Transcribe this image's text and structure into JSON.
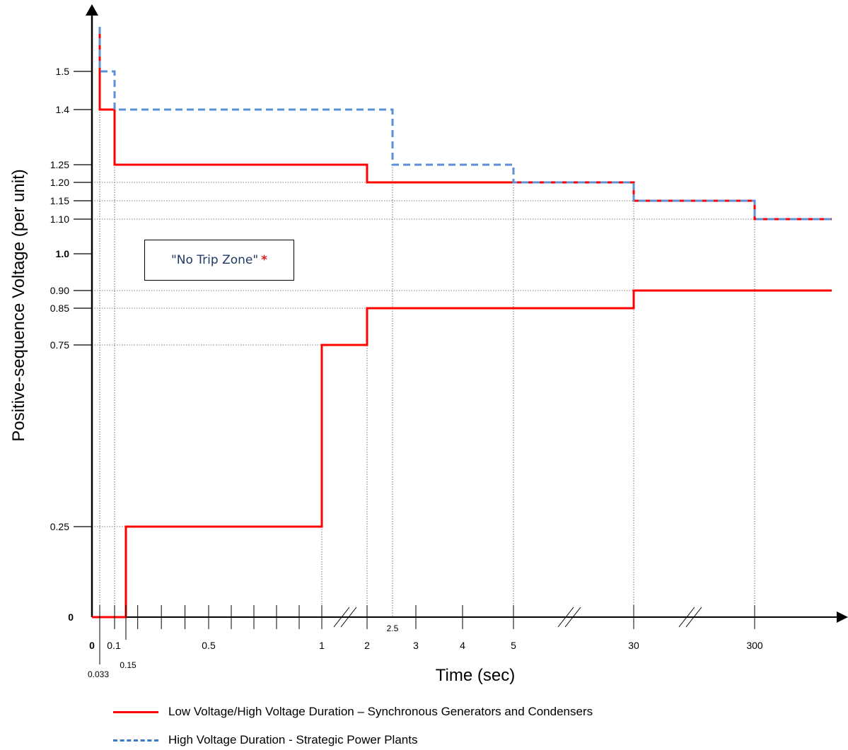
{
  "chart_data": {
    "type": "line",
    "xlabel": "Time (sec)",
    "ylabel": "Positive-sequence Voltage (per unit)",
    "x_scale": "piecewise (axis broken between 1 and 2, between 5 and 30, between 30 and 300)",
    "x_ticks": [
      {
        "label": "0",
        "value": 0,
        "bold": true
      },
      {
        "label": "0.033",
        "value": 0.033,
        "small": true
      },
      {
        "label": "0.1",
        "value": 0.1
      },
      {
        "label": "0.15",
        "value": 0.15,
        "small": true
      },
      {
        "label": "0.5",
        "value": 0.5
      },
      {
        "label": "1",
        "value": 1
      },
      {
        "label": "2",
        "value": 2
      },
      {
        "label": "2.5",
        "value": 2.5,
        "small": true
      },
      {
        "label": "3",
        "value": 3
      },
      {
        "label": "4",
        "value": 4
      },
      {
        "label": "5",
        "value": 5
      },
      {
        "label": "30",
        "value": 30
      },
      {
        "label": "300",
        "value": 300
      }
    ],
    "y_ticks": [
      {
        "label": "0",
        "value": 0,
        "bold": true
      },
      {
        "label": "0.25",
        "value": 0.25
      },
      {
        "label": "0.75",
        "value": 0.75
      },
      {
        "label": "0.85",
        "value": 0.85
      },
      {
        "label": "0.90",
        "value": 0.9
      },
      {
        "label": "1.0",
        "value": 1.0,
        "bold": true
      },
      {
        "label": "1.10",
        "value": 1.1
      },
      {
        "label": "1.15",
        "value": 1.15
      },
      {
        "label": "1.20",
        "value": 1.2
      },
      {
        "label": "1.25",
        "value": 1.25
      },
      {
        "label": "1.4",
        "value": 1.4
      },
      {
        "label": "1.5",
        "value": 1.5
      }
    ],
    "series": [
      {
        "name": "Low Voltage/High Voltage Duration – Synchronous Generators and Condensers",
        "role": "high-voltage-limit",
        "style": "solid",
        "color": "#ff0000",
        "points": [
          [
            0.033,
            1.62
          ],
          [
            0.033,
            1.4
          ],
          [
            0.1,
            1.4
          ],
          [
            0.1,
            1.25
          ],
          [
            2,
            1.25
          ],
          [
            2,
            1.2
          ],
          [
            30,
            1.2
          ],
          [
            30,
            1.15
          ],
          [
            300,
            1.15
          ],
          [
            300,
            1.1
          ],
          [
            400,
            1.1
          ]
        ]
      },
      {
        "name": "Low Voltage/High Voltage Duration – Synchronous Generators and Condensers",
        "role": "low-voltage-limit",
        "style": "solid",
        "color": "#ff0000",
        "points": [
          [
            0,
            0
          ],
          [
            0.15,
            0
          ],
          [
            0.15,
            0.25
          ],
          [
            1,
            0.25
          ],
          [
            1,
            0.75
          ],
          [
            2,
            0.75
          ],
          [
            2,
            0.85
          ],
          [
            30,
            0.85
          ],
          [
            30,
            0.9
          ],
          [
            400,
            0.9
          ]
        ]
      },
      {
        "name": "High Voltage Duration - Strategic Power Plants",
        "role": "high-voltage-limit",
        "style": "dashed",
        "color": "#5b8fd6",
        "points": [
          [
            0.033,
            1.62
          ],
          [
            0.033,
            1.5
          ],
          [
            0.1,
            1.5
          ],
          [
            0.1,
            1.4
          ],
          [
            2.5,
            1.4
          ],
          [
            2.5,
            1.25
          ],
          [
            5,
            1.25
          ],
          [
            5,
            1.2
          ],
          [
            30,
            1.2
          ],
          [
            30,
            1.15
          ],
          [
            300,
            1.15
          ],
          [
            300,
            1.1
          ],
          [
            400,
            1.1
          ]
        ]
      }
    ],
    "annotation": {
      "text": "\"No Trip Zone\"",
      "marker": "*",
      "marker_color": "#e02020"
    },
    "legend": [
      {
        "label": "Low Voltage/High Voltage Duration – Synchronous Generators and Condensers",
        "style": "solid",
        "color": "#ff0000"
      },
      {
        "label": "High Voltage Duration - Strategic Power Plants",
        "style": "dashed",
        "color": "#3a78c4"
      }
    ],
    "grid": "dotted guide lines at step positions",
    "legend_position": "bottom"
  }
}
